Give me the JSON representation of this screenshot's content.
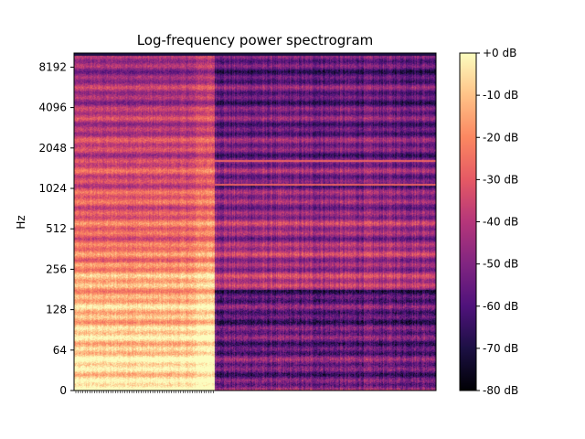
{
  "chart_data": {
    "type": "heatmap",
    "title": "Log-frequency power spectrogram",
    "ylabel": "Hz",
    "xlabel": "",
    "y_scale": "log2",
    "y_ticks": [
      "0",
      "64",
      "128",
      "256",
      "512",
      "1024",
      "2048",
      "4096",
      "8192"
    ],
    "colorbar": {
      "ticks": [
        "+0 dB",
        "-10 dB",
        "-20 dB",
        "-30 dB",
        "-40 dB",
        "-50 dB",
        "-60 dB",
        "-70 dB",
        "-80 dB"
      ],
      "range_db": [
        -80,
        0
      ],
      "colormap": "magma",
      "colors": [
        "#000004",
        "#1c1044",
        "#4f127b",
        "#812581",
        "#b5367a",
        "#e55964",
        "#fb8761",
        "#fec287",
        "#fcfdbf"
      ]
    },
    "x_ticks_labeled": false,
    "regions": [
      {
        "description": "loud low-frequency segment",
        "x_start_frac": 0.0,
        "x_end_frac": 0.39,
        "max_db": -2,
        "min_db": -45
      },
      {
        "description": "quieter tail",
        "x_start_frac": 0.39,
        "x_end_frac": 1.0,
        "max_db": -25,
        "min_db": -75
      }
    ],
    "harmonic_line_hz": [
      1100,
      1650
    ]
  }
}
